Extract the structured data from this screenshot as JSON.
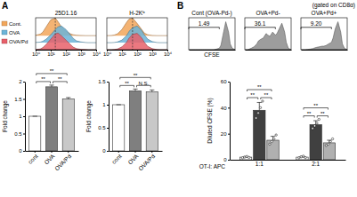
{
  "panel_labels": [
    "A",
    "B"
  ],
  "note": "(gated on CD8α)",
  "chart_data": [
    {
      "type": "area",
      "title": "25D1.16",
      "log": "x",
      "x": [
        1,
        2,
        3,
        5,
        10,
        20,
        30,
        50,
        100,
        200,
        300,
        500,
        1000,
        2000,
        3000,
        5000,
        10000
      ],
      "xlim": [
        1,
        10000
      ],
      "xticks": [
        {
          "value": 1,
          "label": "10⁰"
        },
        {
          "value": 10,
          "label": "10¹"
        },
        {
          "value": 100,
          "label": "10²"
        },
        {
          "value": 1000,
          "label": "10³"
        },
        {
          "value": 10000,
          "label": "10⁴"
        }
      ],
      "ylim": [
        0,
        1
      ],
      "tick_labels": "x",
      "legend": "left",
      "reference_x": 20,
      "series": [
        {
          "name": "Cont.",
          "color": "#f2a65a",
          "values": [
            0.02,
            0.08,
            0.2,
            0.5,
            0.9,
            1.0,
            0.8,
            0.5,
            0.25,
            0.1,
            0.05,
            0.02,
            0.01,
            0,
            0,
            0,
            0
          ]
        },
        {
          "name": "OVA",
          "color": "#6cb4d8",
          "values": [
            0.01,
            0.03,
            0.08,
            0.2,
            0.45,
            0.75,
            0.9,
            0.95,
            0.75,
            0.45,
            0.25,
            0.1,
            0.04,
            0.01,
            0,
            0,
            0
          ]
        },
        {
          "name": "OVA/Pd",
          "color": "#e8606a",
          "values": [
            0.01,
            0.04,
            0.12,
            0.3,
            0.6,
            0.9,
            0.95,
            0.8,
            0.55,
            0.3,
            0.15,
            0.06,
            0.02,
            0.01,
            0,
            0,
            0
          ]
        }
      ]
    },
    {
      "type": "area",
      "title": "H-2Kᵇ",
      "log": "x",
      "x": [
        1,
        2,
        3,
        5,
        10,
        20,
        30,
        50,
        100,
        200,
        300,
        500,
        1000,
        2000,
        3000,
        5000,
        10000
      ],
      "xlim": [
        1,
        10000
      ],
      "xticks": [
        {
          "value": 1,
          "label": "10⁰"
        },
        {
          "value": 10,
          "label": "10¹"
        },
        {
          "value": 100,
          "label": "10²"
        },
        {
          "value": 1000,
          "label": "10³"
        },
        {
          "value": 10000,
          "label": "10⁴"
        }
      ],
      "ylim": [
        0,
        1
      ],
      "tick_labels": "x",
      "reference_x": 50,
      "series": [
        {
          "color": "#f2a65a",
          "values": [
            0,
            0.01,
            0.03,
            0.1,
            0.35,
            0.75,
            0.95,
            1.0,
            0.7,
            0.35,
            0.15,
            0.05,
            0.01,
            0,
            0,
            0,
            0
          ]
        },
        {
          "color": "#6cb4d8",
          "values": [
            0,
            0,
            0.01,
            0.04,
            0.15,
            0.4,
            0.65,
            0.85,
            0.95,
            0.7,
            0.45,
            0.2,
            0.06,
            0.01,
            0,
            0,
            0
          ]
        },
        {
          "color": "#e8606a",
          "values": [
            0,
            0,
            0.01,
            0.04,
            0.16,
            0.42,
            0.67,
            0.87,
            0.93,
            0.68,
            0.43,
            0.19,
            0.06,
            0.01,
            0,
            0,
            0
          ]
        }
      ]
    },
    {
      "type": "bar",
      "ylabel": "Fold change",
      "categories": [
        "cont",
        "OVA",
        "OVA/Pd"
      ],
      "values": [
        1,
        1.85,
        1.5
      ],
      "errors": [
        0,
        0.05,
        0.04
      ],
      "colors": [
        "#ffffff",
        "#7f7f7f",
        "#c8c8c8"
      ],
      "ylim": [
        0,
        2
      ],
      "yticks": [
        0,
        0.5,
        1,
        1.5,
        2
      ],
      "annotations": [
        {
          "from": "cont",
          "to": "OVA",
          "text": "**"
        },
        {
          "from": "OVA",
          "to": "OVA/Pd",
          "text": "**"
        },
        {
          "from": "cont",
          "to": "OVA/Pd",
          "text": "**"
        }
      ]
    },
    {
      "type": "bar",
      "ylabel": "Fold change",
      "categories": [
        "cont",
        "OVA",
        "OVA/Pd"
      ],
      "values": [
        1,
        1.3,
        1.28
      ],
      "errors": [
        0,
        0.04,
        0.04
      ],
      "colors": [
        "#ffffff",
        "#7f7f7f",
        "#c8c8c8"
      ],
      "ylim": [
        0,
        1.5
      ],
      "yticks": [
        0,
        0.5,
        1,
        1.5
      ],
      "annotations": [
        {
          "from": "cont",
          "to": "OVA",
          "text": "**"
        },
        {
          "from": "OVA",
          "to": "OVA/Pd",
          "text": "N.S."
        },
        {
          "from": "cont",
          "to": "OVA/Pd",
          "text": "**"
        }
      ]
    },
    {
      "type": "area",
      "title": "Cont (OVA-Pd-)",
      "log": "x",
      "xlabel": "CFSE",
      "x": [
        1,
        2,
        3,
        5,
        10,
        20,
        30,
        50,
        100,
        200,
        300,
        500,
        1000,
        2000,
        3000,
        5000,
        10000,
        20000,
        30000,
        50000,
        100000
      ],
      "xlim": [
        1,
        100000
      ],
      "ylim": [
        0,
        1
      ],
      "tick_labels": false,
      "gate": {
        "range": [
          1,
          2000
        ],
        "value": 1.49
      },
      "series": [
        {
          "color": "#8c8c8c",
          "values": [
            0,
            0,
            0,
            0,
            0,
            0,
            0,
            0,
            0,
            0,
            0,
            0,
            0.02,
            0.05,
            0.15,
            0.5,
            0.95,
            0.6,
            0.2,
            0.05,
            0
          ]
        }
      ]
    },
    {
      "type": "area",
      "title": "OVA+Pd-",
      "log": "x",
      "x": [
        1,
        2,
        3,
        5,
        10,
        20,
        30,
        50,
        100,
        200,
        300,
        500,
        1000,
        2000,
        3000,
        5000,
        10000,
        20000,
        30000,
        50000,
        100000
      ],
      "xlim": [
        1,
        100000
      ],
      "ylim": [
        0,
        1
      ],
      "tick_labels": false,
      "gate": {
        "range": [
          1,
          2000
        ],
        "value": 36.1
      },
      "series": [
        {
          "color": "#8c8c8c",
          "values": [
            0,
            0,
            0.02,
            0.05,
            0.1,
            0.2,
            0.3,
            0.35,
            0.4,
            0.55,
            0.5,
            0.45,
            0.6,
            0.5,
            0.55,
            0.7,
            0.9,
            0.6,
            0.25,
            0.05,
            0
          ]
        }
      ]
    },
    {
      "type": "area",
      "title": "OVA+Pd+",
      "log": "x",
      "x": [
        1,
        2,
        3,
        5,
        10,
        20,
        30,
        50,
        100,
        200,
        300,
        500,
        1000,
        2000,
        3000,
        5000,
        10000,
        20000,
        30000,
        50000,
        100000
      ],
      "xlim": [
        1,
        100000
      ],
      "ylim": [
        0,
        1
      ],
      "tick_labels": false,
      "gate": {
        "range": [
          1,
          2000
        ],
        "value": 9.2,
        "label": "9.20"
      },
      "series": [
        {
          "color": "#8c8c8c",
          "values": [
            0,
            0,
            0,
            0.01,
            0.02,
            0.04,
            0.06,
            0.08,
            0.1,
            0.12,
            0.12,
            0.14,
            0.2,
            0.25,
            0.4,
            0.7,
            0.95,
            0.6,
            0.2,
            0.05,
            0
          ]
        }
      ]
    },
    {
      "type": "bar",
      "ylabel": "Diluted CFSE (%)",
      "xlabel": "OT-I: APC",
      "categories": [
        "1:1",
        "2:1"
      ],
      "ylim": [
        0,
        60
      ],
      "yticks": [
        0,
        20,
        40,
        60
      ],
      "series": [
        {
          "color": "#ffffff",
          "values": [
            2,
            2
          ],
          "errors": [
            0.5,
            0.6
          ],
          "points": [
            [
              1.5,
              2,
              2.5,
              1.8
            ],
            [
              1.5,
              2.2,
              2.8,
              1.6
            ]
          ]
        },
        {
          "color": "#404040",
          "values": [
            38,
            27
          ],
          "errors": [
            6,
            3
          ],
          "points": [
            [
              32,
              36,
              40,
              45
            ],
            [
              24,
              26,
              28,
              31
            ]
          ]
        },
        {
          "color": "#b0b0b0",
          "values": [
            15,
            13
          ],
          "errors": [
            3,
            2
          ],
          "points": [
            [
              12,
              14,
              16,
              19
            ],
            [
              11,
              12,
              14,
              16
            ]
          ]
        }
      ],
      "annotations": [
        {
          "group": "1:1",
          "from": 0,
          "to": 1,
          "text": "**"
        },
        {
          "group": "1:1",
          "from": 1,
          "to": 2,
          "text": "**"
        },
        {
          "group": "1:1",
          "from": 0,
          "to": 2,
          "text": "**"
        },
        {
          "group": "2:1",
          "from": 0,
          "to": 1,
          "text": "**"
        },
        {
          "group": "2:1",
          "from": 1,
          "to": 2,
          "text": "**"
        },
        {
          "group": "2:1",
          "from": 0,
          "to": 2,
          "text": "**"
        }
      ]
    }
  ]
}
